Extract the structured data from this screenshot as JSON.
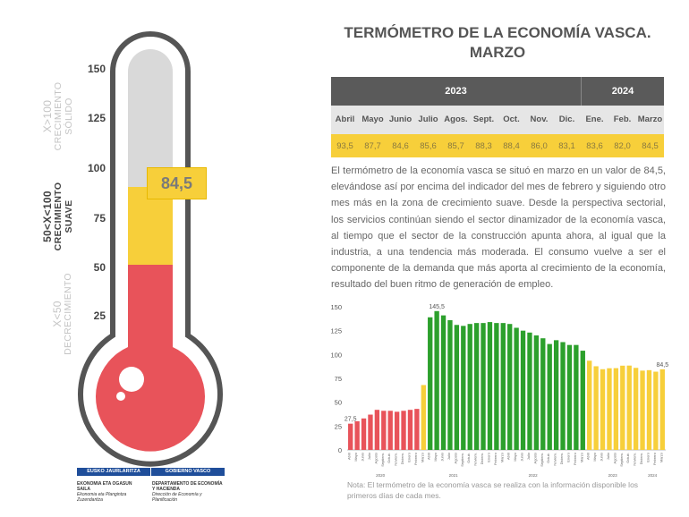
{
  "thermometer": {
    "ticks": [
      "150",
      "125",
      "100",
      "75",
      "50",
      "25"
    ],
    "tick_values": [
      150,
      125,
      100,
      75,
      50,
      25
    ],
    "current_value": 84.5,
    "current_label": "84,5",
    "zones": {
      "solid": {
        "line1": "X>100",
        "line2": "CRECIMIENTO",
        "line3": "SÓLIDO"
      },
      "suave": {
        "line1": "50<X<100",
        "line2": "CRECIMIENTO",
        "line3": "SUAVE"
      },
      "decr": {
        "line1": "X<50",
        "line2": "DECRECIMIENTO"
      }
    },
    "colors": {
      "red": "#e8535a",
      "yellow": "#f7cf3a",
      "grey": "#d9d9d9",
      "outline": "#555555"
    }
  },
  "title": {
    "line1": "TERMÓMETRO DE LA ECONOMÍA VASCA.",
    "line2": "MARZO"
  },
  "table": {
    "year_2023": "2023",
    "year_2024": "2024",
    "months": [
      "Abril",
      "Mayo",
      "Junio",
      "Julio",
      "Agos.",
      "Sept.",
      "Oct.",
      "Nov.",
      "Dic.",
      "Ene.",
      "Feb.",
      "Marzo"
    ],
    "values": [
      "93,5",
      "87,7",
      "84,6",
      "85,6",
      "85,7",
      "88,3",
      "88,4",
      "86,0",
      "83,1",
      "83,6",
      "82,0",
      "84,5"
    ]
  },
  "paragraph": "El termómetro de la economía vasca se situó en marzo en un valor de 84,5, elevándose así por encima del indicador del mes de febrero y siguiendo otro mes más en la zona de crecimiento suave. Desde la perspectiva sectorial, los servicios continúan siendo el sector dinamizador de la economía vasca, al tiempo que el sector de la construcción apunta ahora, al igual que la industria, a una tendencia más moderada. El consumo vuelve a ser el componente de la demanda que más aporta al crecimiento de la economía, resultado del buen ritmo de generación de empleo.",
  "note": "Nota: El termómetro de la economía vasca se realiza con la información disponible los primeros días de cada mes.",
  "logo": {
    "left": "EUSKO JAURLARITZA",
    "right": "GOBIERNO VASCO",
    "dept_eu_1": "EKONOMIA ETA OGASUN",
    "dept_eu_2": "SAILA",
    "dept_eu_3": "Ekonomia eta Plangintza Zuzendaritza",
    "dept_es_1": "DEPARTAMENTO DE ECONOMÍA",
    "dept_es_2": "Y HACIENDA",
    "dept_es_3": "Dirección de Economía y Planificación"
  },
  "chart_data": {
    "type": "bar",
    "ylim": [
      0,
      150
    ],
    "yticks": [
      0,
      25,
      50,
      75,
      100,
      125,
      150
    ],
    "categories": [
      "Abril",
      "Mayo",
      "Junio",
      "Julio",
      "Agosto",
      "Septiem.",
      "Octub.",
      "Noviem.",
      "Diciem.",
      "Enero",
      "Febrero",
      "Marzo",
      "Abril",
      "Mayo",
      "Junio",
      "Julio",
      "Agosto",
      "Septiem.",
      "Octub.",
      "Noviem.",
      "Diciem.",
      "Enero",
      "Febrero",
      "Marzo",
      "Abril",
      "Mayo",
      "Junio",
      "Julio",
      "Agosto",
      "Septiem.",
      "Octub.",
      "Noviem.",
      "Diciem.",
      "Enero",
      "Febrero",
      "Marzo",
      "Abril",
      "Mayo",
      "Junio",
      "Julio",
      "Agosto",
      "Septiem.",
      "Octub.",
      "Noviem.",
      "Diciem.",
      "Enero",
      "Febrero",
      "Marzo"
    ],
    "values": [
      27.5,
      30,
      33,
      37,
      42,
      41,
      41,
      40,
      41,
      42,
      43,
      68,
      139,
      145.5,
      141,
      136,
      131,
      130,
      132,
      133,
      133,
      134,
      133,
      133,
      132,
      128,
      125,
      123,
      120,
      117,
      111,
      115,
      113,
      110,
      110,
      104,
      93.5,
      87.7,
      84.6,
      85.6,
      85.7,
      88.3,
      88.4,
      86.0,
      83.1,
      83.6,
      82.0,
      84.5
    ],
    "colors": [
      "#e8535a",
      "#e8535a",
      "#e8535a",
      "#e8535a",
      "#e8535a",
      "#e8535a",
      "#e8535a",
      "#e8535a",
      "#e8535a",
      "#e8535a",
      "#e8535a",
      "#f7cf3a",
      "#2ca02c",
      "#2ca02c",
      "#2ca02c",
      "#2ca02c",
      "#2ca02c",
      "#2ca02c",
      "#2ca02c",
      "#2ca02c",
      "#2ca02c",
      "#2ca02c",
      "#2ca02c",
      "#2ca02c",
      "#2ca02c",
      "#2ca02c",
      "#2ca02c",
      "#2ca02c",
      "#2ca02c",
      "#2ca02c",
      "#2ca02c",
      "#2ca02c",
      "#2ca02c",
      "#2ca02c",
      "#2ca02c",
      "#2ca02c",
      "#f7cf3a",
      "#f7cf3a",
      "#f7cf3a",
      "#f7cf3a",
      "#f7cf3a",
      "#f7cf3a",
      "#f7cf3a",
      "#f7cf3a",
      "#f7cf3a",
      "#f7cf3a",
      "#f7cf3a",
      "#f7cf3a"
    ],
    "year_labels": [
      {
        "label": "2020",
        "center_index": 4.5
      },
      {
        "label": "2021",
        "center_index": 15.5
      },
      {
        "label": "2022",
        "center_index": 27.5
      },
      {
        "label": "2023",
        "center_index": 39.5
      },
      {
        "label": "2024",
        "center_index": 45.5
      }
    ],
    "data_labels": [
      {
        "index": 0,
        "text": "27,5"
      },
      {
        "index": 13,
        "text": "145,5"
      },
      {
        "index": 47,
        "text": "84,5"
      }
    ],
    "grid": false
  }
}
